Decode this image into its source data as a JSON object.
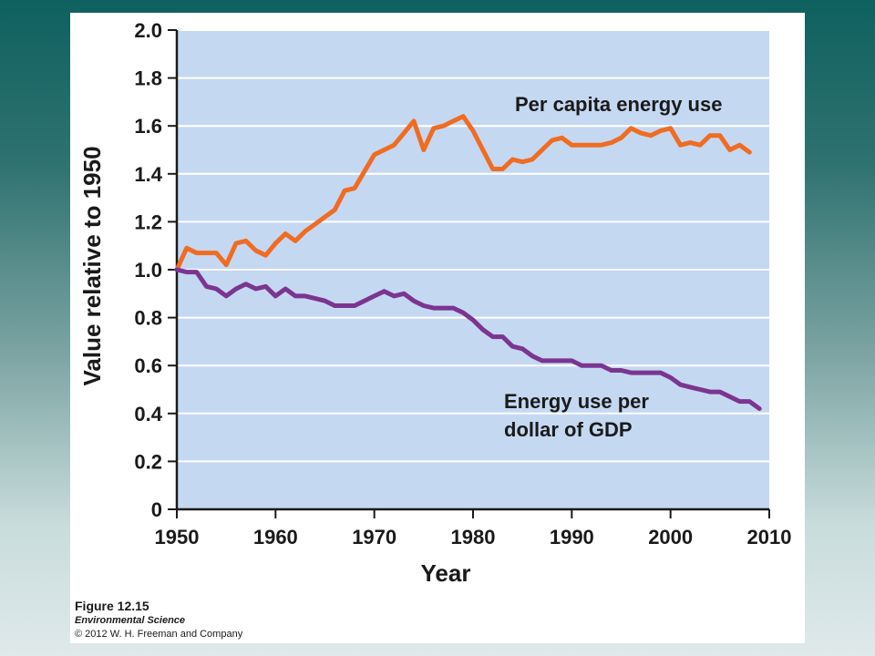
{
  "colors": {
    "plot_background": "#c5d8f2",
    "gridline": "#ffffff",
    "axis": "#1a1a1a",
    "per_capita_series": "#ef6c22",
    "gdp_series": "#7b3590"
  },
  "caption": {
    "figure": "Figure 12.15",
    "book": "Environmental Science",
    "copyright": "© 2012 W. H. Freeman and Company"
  },
  "chart_data": {
    "type": "line",
    "title": "",
    "xlabel": "Year",
    "ylabel": "Value relative to 1950",
    "xlim": [
      1950,
      2010
    ],
    "ylim": [
      0,
      2.0
    ],
    "x_ticks": [
      1950,
      1960,
      1970,
      1980,
      1990,
      2000,
      2010
    ],
    "x_tick_labels": [
      "1950",
      "1960",
      "1970",
      "1980",
      "1990",
      "2000",
      "2010"
    ],
    "y_ticks": [
      0,
      0.2,
      0.4,
      0.6,
      0.8,
      1.0,
      1.2,
      1.4,
      1.6,
      1.8,
      2.0
    ],
    "y_tick_labels": [
      "0",
      "0.2",
      "0.4",
      "0.6",
      "0.8",
      "1.0",
      "1.2",
      "1.4",
      "1.6",
      "1.8",
      "2.0"
    ],
    "grid": true,
    "legend": "none",
    "series": [
      {
        "name": "Per capita energy use",
        "label_lines": [
          "Per capita energy use"
        ],
        "x": [
          1950,
          1951,
          1952,
          1953,
          1954,
          1955,
          1956,
          1957,
          1958,
          1959,
          1960,
          1961,
          1962,
          1963,
          1964,
          1965,
          1966,
          1967,
          1968,
          1969,
          1970,
          1971,
          1972,
          1973,
          1974,
          1975,
          1976,
          1977,
          1978,
          1979,
          1980,
          1981,
          1982,
          1983,
          1984,
          1985,
          1986,
          1987,
          1988,
          1989,
          1990,
          1991,
          1992,
          1993,
          1994,
          1995,
          1996,
          1997,
          1998,
          1999,
          2000,
          2001,
          2002,
          2003,
          2004,
          2005,
          2006,
          2007,
          2008
        ],
        "y": [
          1.0,
          1.09,
          1.07,
          1.07,
          1.07,
          1.02,
          1.11,
          1.12,
          1.08,
          1.06,
          1.11,
          1.15,
          1.12,
          1.16,
          1.19,
          1.22,
          1.25,
          1.33,
          1.34,
          1.41,
          1.48,
          1.5,
          1.52,
          1.57,
          1.62,
          1.5,
          1.59,
          1.6,
          1.62,
          1.64,
          1.58,
          1.5,
          1.42,
          1.42,
          1.46,
          1.45,
          1.46,
          1.5,
          1.54,
          1.55,
          1.52,
          1.52,
          1.52,
          1.52,
          1.53,
          1.55,
          1.59,
          1.57,
          1.56,
          1.58,
          1.59,
          1.52,
          1.53,
          1.52,
          1.56,
          1.56,
          1.5,
          1.52,
          1.49
        ]
      },
      {
        "name": "Energy use per dollar of GDP",
        "label_lines": [
          "Energy use per",
          "dollar of GDP"
        ],
        "x": [
          1950,
          1951,
          1952,
          1953,
          1954,
          1955,
          1956,
          1957,
          1958,
          1959,
          1960,
          1961,
          1962,
          1963,
          1964,
          1965,
          1966,
          1967,
          1968,
          1969,
          1970,
          1971,
          1972,
          1973,
          1974,
          1975,
          1976,
          1977,
          1978,
          1979,
          1980,
          1981,
          1982,
          1983,
          1984,
          1985,
          1986,
          1987,
          1988,
          1989,
          1990,
          1991,
          1992,
          1993,
          1994,
          1995,
          1996,
          1997,
          1998,
          1999,
          2000,
          2001,
          2002,
          2003,
          2004,
          2005,
          2006,
          2007,
          2008,
          2009
        ],
        "y": [
          1.0,
          0.99,
          0.99,
          0.93,
          0.92,
          0.89,
          0.92,
          0.94,
          0.92,
          0.93,
          0.89,
          0.92,
          0.89,
          0.89,
          0.88,
          0.87,
          0.85,
          0.85,
          0.85,
          0.87,
          0.89,
          0.91,
          0.89,
          0.9,
          0.87,
          0.85,
          0.84,
          0.84,
          0.84,
          0.82,
          0.79,
          0.75,
          0.72,
          0.72,
          0.68,
          0.67,
          0.64,
          0.62,
          0.62,
          0.62,
          0.62,
          0.6,
          0.6,
          0.6,
          0.58,
          0.58,
          0.57,
          0.57,
          0.57,
          0.57,
          0.55,
          0.52,
          0.51,
          0.5,
          0.49,
          0.49,
          0.47,
          0.45,
          0.45,
          0.42
        ]
      }
    ]
  }
}
